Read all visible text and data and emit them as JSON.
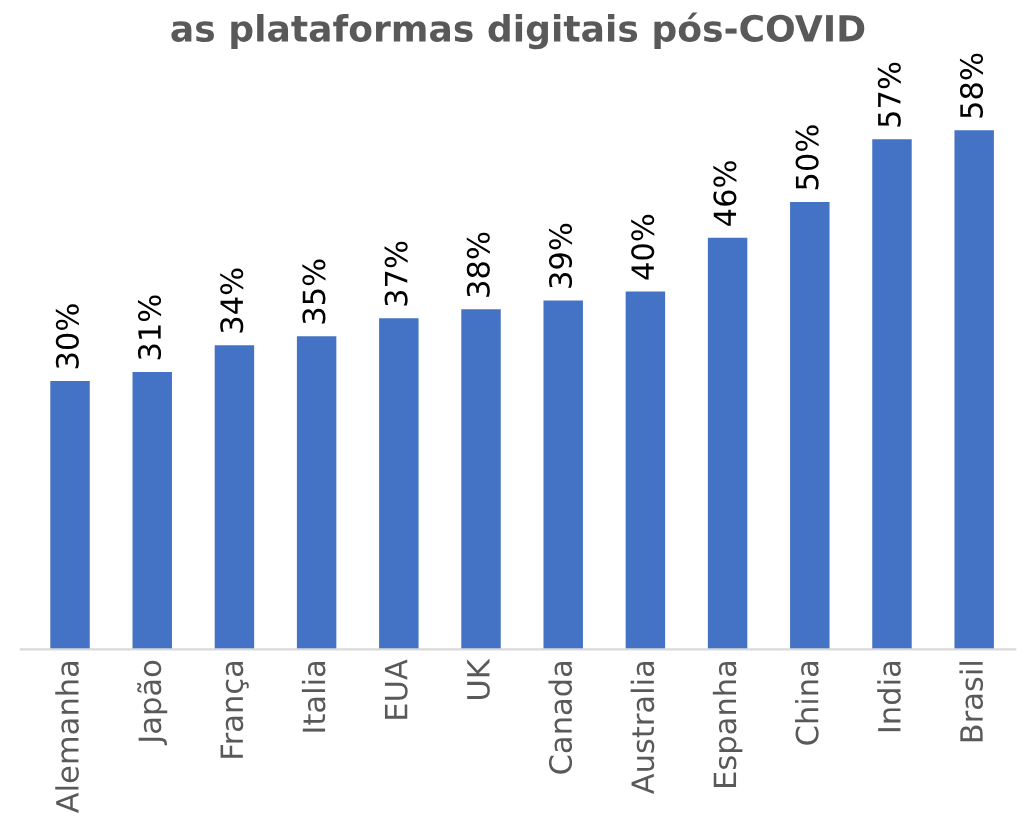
{
  "chart_data": {
    "type": "bar",
    "title": "as plataformas digitais pós-COVID",
    "categories": [
      "Alemanha",
      "Japão",
      "França",
      "Italia",
      "EUA",
      "UK",
      "Canada",
      "Australia",
      "Espanha",
      "China",
      "India",
      "Brasil"
    ],
    "values": [
      30,
      31,
      34,
      35,
      37,
      38,
      39,
      40,
      46,
      50,
      57,
      58
    ],
    "value_labels": [
      "30%",
      "31%",
      "34%",
      "35%",
      "37%",
      "38%",
      "39%",
      "40%",
      "46%",
      "50%",
      "57%",
      "58%"
    ],
    "color": "#4472c4",
    "grid": false,
    "legend": false
  }
}
